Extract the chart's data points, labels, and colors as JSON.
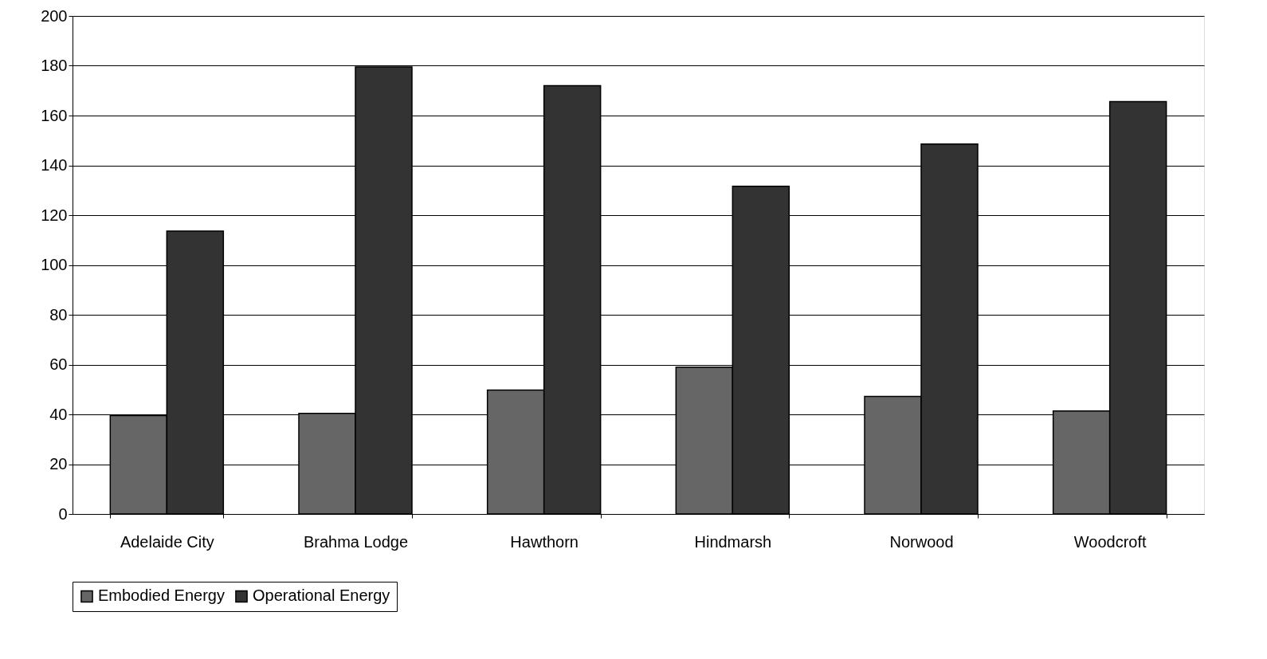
{
  "chart_data": {
    "type": "bar",
    "categories": [
      "Adelaide City",
      "Brahma Lodge",
      "Hawthorn",
      "Hindmarsh",
      "Norwood",
      "Woodcroft"
    ],
    "series": [
      {
        "name": "Embodied Energy",
        "color": "#666666",
        "values": [
          39.5,
          40.4,
          49.8,
          59,
          47.2,
          41.4
        ]
      },
      {
        "name": "Operational Energy",
        "color": "#333333",
        "values": [
          113.6,
          179.5,
          172,
          131.6,
          148.6,
          165.6
        ]
      }
    ],
    "ylim": [
      0,
      200
    ],
    "yticks": [
      0,
      20,
      40,
      60,
      80,
      100,
      120,
      140,
      160,
      180,
      200
    ],
    "grid": "y",
    "legend": "bottom"
  }
}
